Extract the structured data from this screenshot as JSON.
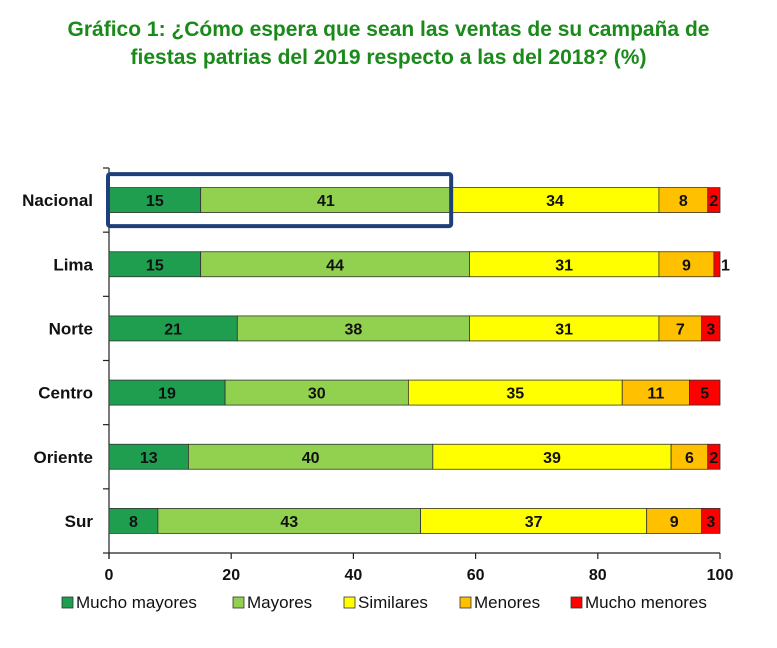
{
  "title_line1": "Gráfico 1: ¿Cómo espera que sean las ventas de su campaña de",
  "title_line2": "fiestas patrias del 2019 respecto a las del 2018?  (%)",
  "colors": {
    "title": "#1a8a1a",
    "highlight_box": "#1f3f7a",
    "series": [
      "#1f9e50",
      "#92d050",
      "#ffff00",
      "#ffc000",
      "#ff0000"
    ]
  },
  "chart_data": {
    "type": "bar",
    "orientation": "horizontal",
    "stacked": true,
    "title": "Gráfico 1: ¿Cómo espera que sean las ventas de su campaña de fiestas patrias del 2019 respecto a las del 2018?  (%)",
    "categories": [
      "Nacional",
      "Lima",
      "Norte",
      "Centro",
      "Oriente",
      "Sur"
    ],
    "series": [
      {
        "name": "Mucho mayores",
        "values": [
          15,
          15,
          21,
          19,
          13,
          8
        ]
      },
      {
        "name": "Mayores",
        "values": [
          41,
          44,
          38,
          30,
          40,
          43
        ]
      },
      {
        "name": "Similares",
        "values": [
          34,
          31,
          31,
          35,
          39,
          37
        ]
      },
      {
        "name": "Menores",
        "values": [
          8,
          9,
          7,
          11,
          6,
          9
        ]
      },
      {
        "name": "Mucho menores",
        "values": [
          2,
          1,
          3,
          5,
          2,
          3
        ]
      }
    ],
    "xlim": [
      0,
      100
    ],
    "xticks": [
      0,
      20,
      40,
      60,
      80,
      100
    ],
    "grid": false,
    "legend_position": "bottom",
    "highlight": {
      "category": "Nacional",
      "series": [
        "Mucho mayores",
        "Mayores"
      ]
    }
  }
}
